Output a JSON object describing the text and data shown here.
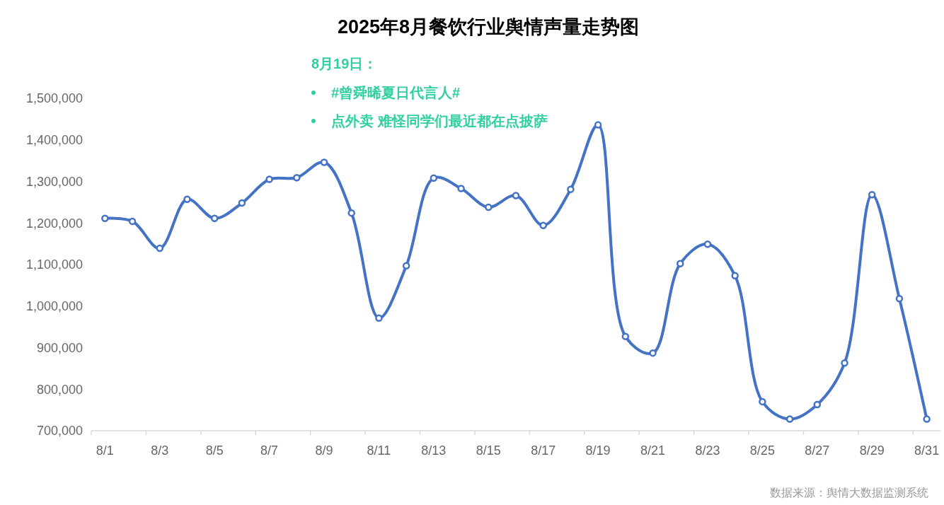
{
  "chart_data": {
    "type": "line",
    "title": "2025年8月餐饮行业舆情声量走势图",
    "categories": [
      "8/1",
      null,
      "8/3",
      null,
      "8/5",
      null,
      "8/7",
      null,
      "8/9",
      null,
      "8/11",
      null,
      "8/13",
      null,
      "8/15",
      null,
      "8/17",
      null,
      "8/19",
      null,
      "8/21",
      null,
      "8/23",
      null,
      "8/25",
      null,
      "8/27",
      null,
      "8/29",
      null,
      "8/31"
    ],
    "values": [
      1211000,
      1204000,
      1139000,
      1257000,
      1211000,
      1248000,
      1305000,
      1309000,
      1346000,
      1224000,
      971000,
      1097000,
      1308000,
      1283000,
      1238000,
      1266000,
      1194000,
      1281000,
      1436000,
      927000,
      887000,
      1102000,
      1149000,
      1073000,
      770000,
      728000,
      763000,
      863000,
      1268000,
      1018000,
      728000
    ],
    "color": "#4472c4",
    "marker": "circle",
    "ylim": [
      700000,
      1500000
    ],
    "yticks": [
      {
        "value": 700000,
        "label": "700,000"
      },
      {
        "value": 800000,
        "label": "800,000"
      },
      {
        "value": 900000,
        "label": "900,000"
      },
      {
        "value": 1000000,
        "label": "1,000,000"
      },
      {
        "value": 1100000,
        "label": "1,100,000"
      },
      {
        "value": 1200000,
        "label": "1,200,000"
      },
      {
        "value": 1300000,
        "label": "1,300,000"
      },
      {
        "value": 1400000,
        "label": "1,400,000"
      },
      {
        "value": 1500000,
        "label": "1,500,000"
      }
    ],
    "annotations": [
      "8月19日：",
      "#曾舜晞夏日代言人#",
      "点外卖 难怪同学们最近都在点披萨",
      "数据来源：舆情大数据监测系统"
    ]
  }
}
